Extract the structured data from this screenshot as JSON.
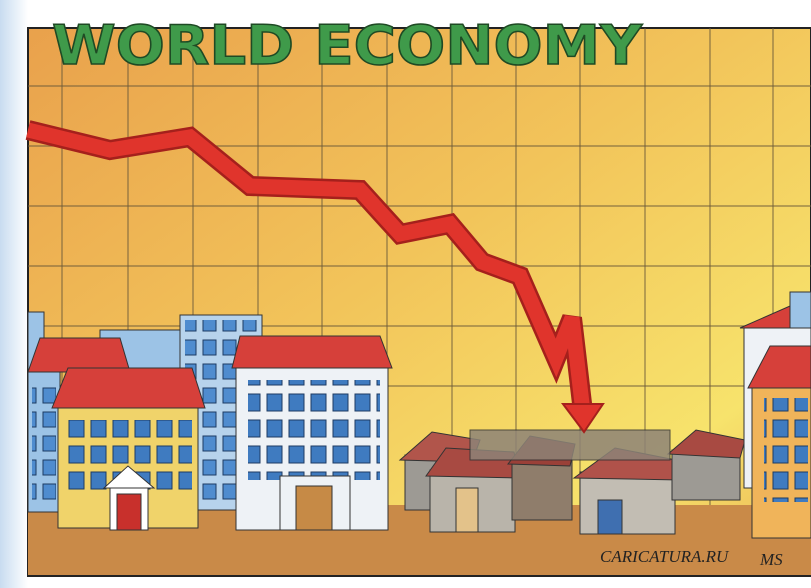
{
  "title": "WORLD ECONOMY",
  "credit": "CARICATURA.RU",
  "signature": "MS"
}
